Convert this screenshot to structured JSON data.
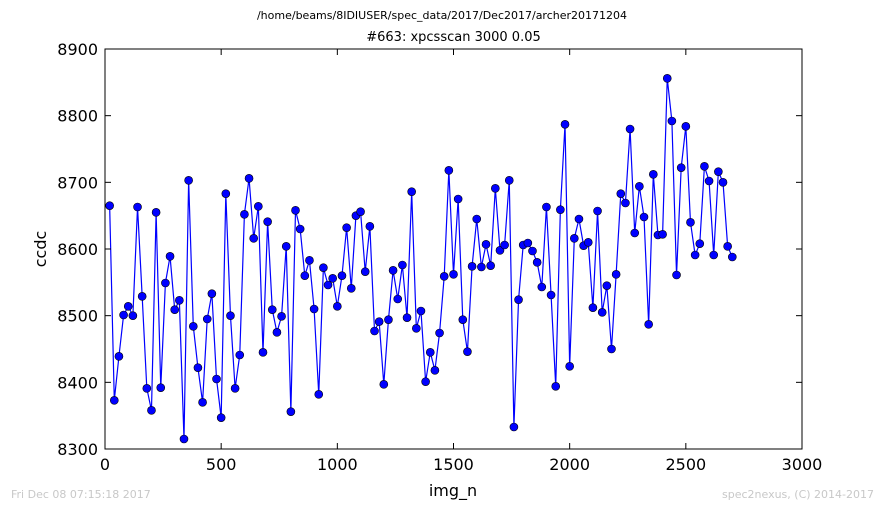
{
  "header": {
    "path": "/home/beams/8IDIUSER/spec_data/2017/Dec2017/archer20171204"
  },
  "footer": {
    "timestamp": "Fri Dec 08 07:15:18 2017",
    "credit": "spec2nexus, (C) 2014-2017"
  },
  "chart_data": {
    "type": "line",
    "title": "#663: xpcsscan 3000 0.05",
    "xlabel": "img_n",
    "ylabel": "ccdc",
    "xlim": [
      0,
      3000
    ],
    "ylim": [
      8300,
      8900
    ],
    "xticks": [
      0,
      500,
      1000,
      1500,
      2000,
      2500,
      3000
    ],
    "yticks": [
      8300,
      8400,
      8500,
      8600,
      8700,
      8800,
      8900
    ],
    "grid": false,
    "line_color": "#0000ff",
    "marker_color": "#0000ff",
    "marker": "circle",
    "x_start": 20,
    "x_step": 20,
    "values": [
      8665,
      8373,
      8439,
      8501,
      8514,
      8500,
      8663,
      8529,
      8391,
      8358,
      8655,
      8392,
      8549,
      8589,
      8509,
      8523,
      8315,
      8703,
      8484,
      8422,
      8370,
      8495,
      8533,
      8405,
      8347,
      8683,
      8500,
      8391,
      8441,
      8652,
      8706,
      8616,
      8664,
      8445,
      8641,
      8509,
      8475,
      8499,
      8604,
      8356,
      8658,
      8630,
      8560,
      8583,
      8510,
      8382,
      8572,
      8546,
      8556,
      8514,
      8560,
      8632,
      8541,
      8650,
      8656,
      8566,
      8634,
      8477,
      8491,
      8397,
      8494,
      8568,
      8525,
      8576,
      8497,
      8686,
      8481,
      8507,
      8401,
      8445,
      8418,
      8474,
      8559,
      8718,
      8562,
      8675,
      8494,
      8446,
      8574,
      8645,
      8573,
      8607,
      8575,
      8691,
      8598,
      8606,
      8703,
      8333,
      8524,
      8606,
      8609,
      8597,
      8580,
      8543,
      8663,
      8531,
      8394,
      8659,
      8787,
      8424,
      8616,
      8645,
      8605,
      8610,
      8512,
      8657,
      8505,
      8545,
      8450,
      8562,
      8683,
      8669,
      8780,
      8624,
      8694,
      8648,
      8487,
      8712,
      8621,
      8622,
      8856,
      8792,
      8561,
      8722,
      8784,
      8640,
      8591,
      8608,
      8724,
      8702,
      8591,
      8716,
      8700,
      8604,
      8588
    ]
  }
}
